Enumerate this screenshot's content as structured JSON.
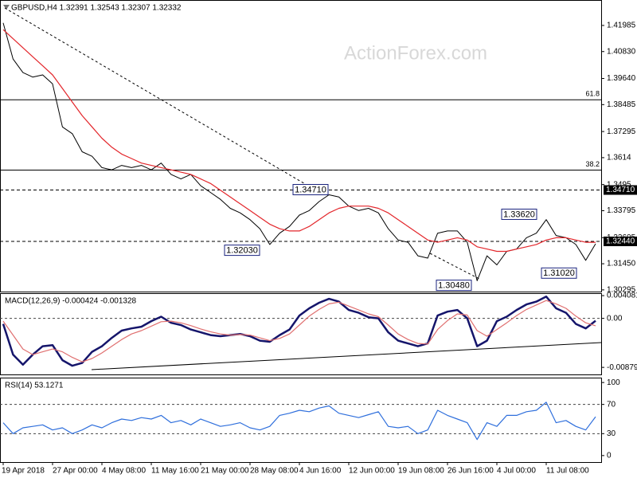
{
  "chart_data": [
    {
      "type": "line",
      "title": "GBPUSD,H4  1.32391 1.32543 1.32307 1.32332",
      "watermark": "ActionForex.com",
      "ylim": [
        1.3022,
        1.4311
      ],
      "yticks": [
        1.41985,
        {
          "value": 1.4083,
          "label": "1.40830"
        },
        {
          "value": 1.3964,
          "label": "1.39640"
        },
        1.38485,
        1.37295,
        1.3614,
        1.3495,
        1.33795,
        1.32605,
        {
          "value": 1.3145,
          "label": "1.31450"
        },
        1.30295
      ],
      "series": [
        {
          "name": "Close",
          "color": "#000000",
          "values": [
            1.421,
            1.405,
            1.399,
            1.397,
            1.398,
            1.394,
            1.375,
            1.372,
            1.364,
            1.362,
            1.357,
            1.356,
            1.358,
            1.357,
            1.358,
            1.356,
            1.359,
            1.354,
            1.352,
            1.354,
            1.349,
            1.346,
            1.343,
            1.339,
            1.337,
            1.334,
            1.33,
            1.323,
            1.328,
            1.331,
            1.336,
            1.338,
            1.342,
            1.345,
            1.344,
            1.34,
            1.338,
            1.339,
            1.337,
            1.33,
            1.325,
            1.324,
            1.318,
            1.317,
            1.328,
            1.329,
            1.329,
            1.324,
            1.307,
            1.318,
            1.314,
            1.32,
            1.321,
            1.326,
            1.328,
            1.334,
            1.327,
            1.326,
            1.323,
            1.316,
            1.32332
          ]
        },
        {
          "name": "MA",
          "color": "#e3262b",
          "values": [
            1.418,
            1.414,
            1.41,
            1.406,
            1.402,
            1.398,
            1.392,
            1.386,
            1.38,
            1.375,
            1.37,
            1.366,
            1.363,
            1.361,
            1.359,
            1.358,
            1.357,
            1.356,
            1.355,
            1.354,
            1.352,
            1.35,
            1.347,
            1.344,
            1.341,
            1.338,
            1.335,
            1.332,
            1.33,
            1.329,
            1.329,
            1.331,
            1.334,
            1.337,
            1.339,
            1.34,
            1.34,
            1.34,
            1.339,
            1.337,
            1.334,
            1.331,
            1.328,
            1.325,
            1.324,
            1.325,
            1.326,
            1.325,
            1.322,
            1.321,
            1.32,
            1.32,
            1.321,
            1.322,
            1.323,
            1.325,
            1.326,
            1.326,
            1.325,
            1.324,
            1.324
          ]
        }
      ],
      "fib_levels": [
        {
          "value": 1.387,
          "label": "61.8"
        },
        {
          "value": 1.3559,
          "label": "38.2"
        }
      ],
      "price_lines": [
        {
          "value": 1.3471,
          "label": "1.34710"
        },
        {
          "value": 1.3244,
          "label": "1.32440"
        }
      ],
      "annotations": [
        {
          "value": 1.3471,
          "label": "1.34710"
        },
        {
          "value": 1.3362,
          "label": "1.33620"
        },
        {
          "value": 1.3203,
          "label": "1.32030"
        },
        {
          "value": 1.3102,
          "label": "1.31020"
        },
        {
          "value": 1.3048,
          "label": "1.30480"
        }
      ]
    },
    {
      "type": "line",
      "title": "MACD(12,26,9) -0.000424 -0.001328",
      "ylim": [
        -0.01006,
        0.00452
      ],
      "yticks": [
        0.004081,
        {
          "value": 0,
          "label": "0.00"
        },
        -0.008794
      ],
      "levels": [
        0
      ],
      "series": [
        {
          "name": "MACD",
          "color": "#15156b",
          "values": [
            -0.001,
            -0.0065,
            -0.0083,
            -0.0065,
            -0.005,
            -0.0048,
            -0.0075,
            -0.0085,
            -0.008,
            -0.006,
            -0.005,
            -0.0035,
            -0.0022,
            -0.0018,
            -0.0015,
            -0.0005,
            0.0003,
            -0.0008,
            -0.0012,
            -0.002,
            -0.0025,
            -0.003,
            -0.0032,
            -0.003,
            -0.0028,
            -0.0032,
            -0.004,
            -0.0042,
            -0.003,
            -0.002,
            0.0005,
            0.0018,
            0.0028,
            0.0035,
            0.003,
            0.0015,
            0.001,
            0.0002,
            0,
            -0.0025,
            -0.004,
            -0.0045,
            -0.005,
            -0.0045,
            0.0005,
            0.0012,
            0.0015,
            0,
            -0.005,
            -0.004,
            -0.0005,
            0.0003,
            0.0015,
            0.0025,
            0.003,
            0.0039,
            0.0018,
            0.001,
            -0.001,
            -0.0018,
            -0.000424
          ]
        },
        {
          "name": "Signal",
          "color": "#e07070",
          "values": [
            -0.0005,
            -0.003,
            -0.0055,
            -0.0065,
            -0.006,
            -0.0055,
            -0.006,
            -0.007,
            -0.0078,
            -0.0072,
            -0.0062,
            -0.005,
            -0.0038,
            -0.0028,
            -0.0022,
            -0.0014,
            -0.0006,
            -0.0005,
            -0.0008,
            -0.0013,
            -0.0019,
            -0.0024,
            -0.0028,
            -0.003,
            -0.0029,
            -0.003,
            -0.0035,
            -0.004,
            -0.0036,
            -0.0028,
            -0.0012,
            0.0004,
            0.0016,
            0.0026,
            0.0029,
            0.0022,
            0.0015,
            0.0008,
            0.0003,
            -0.0012,
            -0.0028,
            -0.0038,
            -0.0045,
            -0.0046,
            -0.002,
            -0.0004,
            0.0008,
            0.0006,
            -0.0022,
            -0.0032,
            -0.002,
            -0.0008,
            0.0005,
            0.0016,
            0.0024,
            0.0032,
            0.0026,
            0.0018,
            0.0004,
            -0.0008,
            -0.001328
          ]
        }
      ]
    },
    {
      "type": "line",
      "title": "RSI(14) 53.1271",
      "ylim": [
        -8.9,
        106.7
      ],
      "yticks": [
        100,
        70,
        30,
        0
      ],
      "levels": [
        70,
        30
      ],
      "series": [
        {
          "name": "RSI",
          "color": "#2f6fdc",
          "values": [
            45,
            30,
            38,
            40,
            42,
            35,
            38,
            30,
            35,
            42,
            38,
            45,
            50,
            48,
            52,
            50,
            55,
            45,
            48,
            42,
            50,
            45,
            40,
            42,
            45,
            38,
            35,
            40,
            55,
            58,
            62,
            60,
            65,
            68,
            58,
            55,
            52,
            56,
            60,
            40,
            38,
            40,
            30,
            35,
            62,
            55,
            50,
            45,
            22,
            45,
            40,
            55,
            55,
            60,
            62,
            73,
            45,
            48,
            40,
            35,
            53.1271
          ]
        }
      ],
      "categories": [
        "19 Apr 2018",
        null,
        null,
        null,
        null,
        "27 Apr 00:00",
        null,
        null,
        null,
        null,
        "4 May 08:00",
        null,
        null,
        null,
        null,
        "11 May 16:00",
        null,
        null,
        null,
        null,
        "21 May 00:00",
        null,
        null,
        null,
        null,
        "28 May 08:00",
        null,
        null,
        null,
        null,
        "4 Jun 16:00",
        null,
        null,
        null,
        null,
        "12 Jun 00:00",
        null,
        null,
        null,
        null,
        "19 Jun 08:00",
        null,
        null,
        null,
        null,
        "26 Jun 16:00",
        null,
        null,
        null,
        null,
        "4 Jul 00:00",
        null,
        null,
        null,
        null,
        "11 Jul 08:00",
        null,
        null,
        null,
        null,
        null
      ]
    }
  ]
}
